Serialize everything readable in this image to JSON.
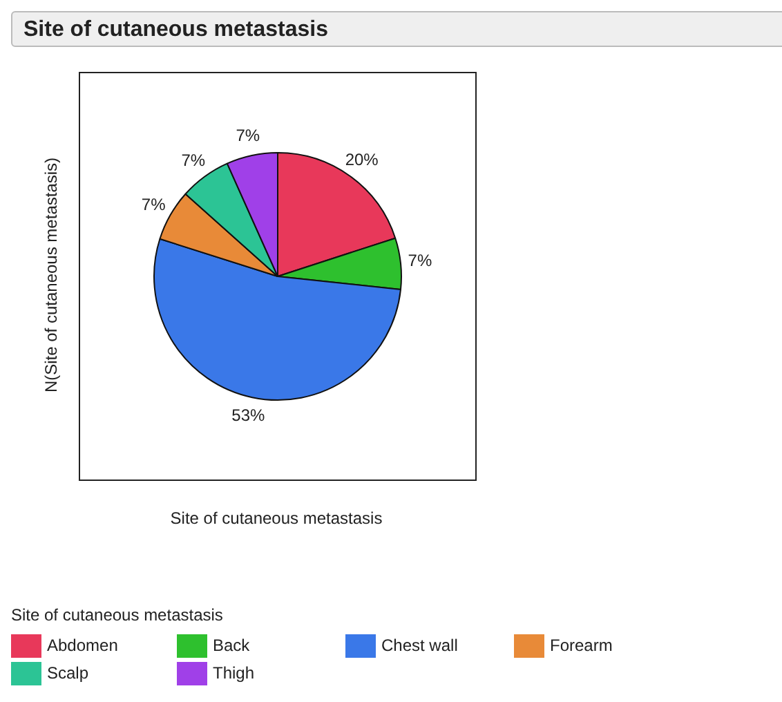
{
  "chart_data": {
    "type": "pie",
    "title": "Site of cutaneous metastasis",
    "xlabel": "Site of cutaneous metastasis",
    "ylabel": "N(Site of cutaneous metastasis)",
    "legend_title": "Site of cutaneous metastasis",
    "categories": [
      "Abdomen",
      "Back",
      "Chest wall",
      "Forearm",
      "Scalp",
      "Thigh"
    ],
    "values": [
      20,
      6.7,
      53.2,
      6.7,
      6.7,
      6.7
    ],
    "value_labels": [
      "20%",
      "7%",
      "53%",
      "7%",
      "7%",
      "7%"
    ],
    "colors": [
      "#e8385a",
      "#2ec02e",
      "#3a78e8",
      "#e88a38",
      "#2cc495",
      "#a040e8"
    ],
    "legend": "bottom"
  }
}
